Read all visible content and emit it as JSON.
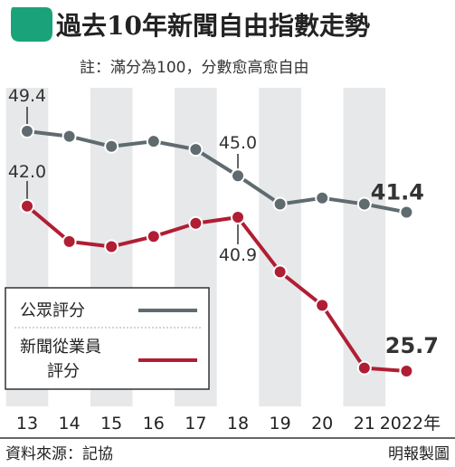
{
  "header": {
    "title": "過去10年新聞自由指數走勢",
    "note": "註：滿分為100，分數愈高愈自由",
    "accent_color": "#1aa37a"
  },
  "footer": {
    "source": "資料來源：記協",
    "credit": "明報製圖"
  },
  "chart_data": {
    "type": "line",
    "title": "過去10年新聞自由指數走勢",
    "note": "註：滿分為100，分數愈高愈自由",
    "x": [
      "13",
      "14",
      "15",
      "16",
      "17",
      "18",
      "19",
      "20",
      "21",
      "2022年"
    ],
    "ylim": [
      22,
      52
    ],
    "grid": "alternating vertical bands",
    "legend_position": "bottom-left",
    "series": [
      {
        "name": "公眾評分",
        "color": "#5f6b6f",
        "values": [
          49.4,
          48.9,
          47.9,
          48.4,
          47.6,
          45.0,
          42.2,
          42.8,
          42.2,
          41.4
        ]
      },
      {
        "name": "新聞從業員評分",
        "legend_lines": [
          "新聞從業員",
          "評分"
        ],
        "color": "#b01e33",
        "values": [
          42.0,
          38.5,
          38.0,
          39.0,
          40.3,
          40.9,
          35.5,
          32.2,
          26.0,
          25.7
        ]
      }
    ],
    "annotations": [
      "49.4",
      "42.0",
      "45.0",
      "40.9",
      "41.4",
      "25.7"
    ]
  }
}
